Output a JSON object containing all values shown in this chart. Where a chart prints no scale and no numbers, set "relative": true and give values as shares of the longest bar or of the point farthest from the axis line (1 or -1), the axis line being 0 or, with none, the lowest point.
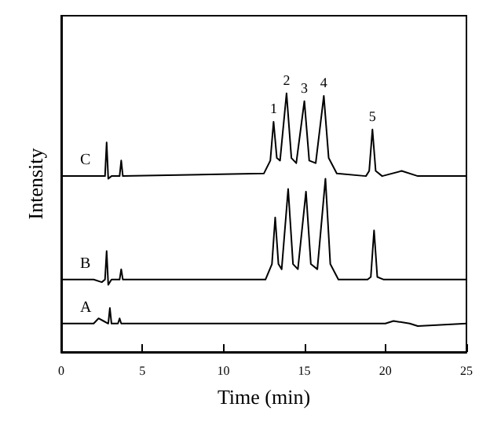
{
  "chart_data": {
    "type": "line",
    "relative": true,
    "xlabel": "Time (min)",
    "ylabel": "Intensity",
    "xlim": [
      0,
      25
    ],
    "xticks": [
      0,
      5,
      10,
      15,
      20,
      25
    ],
    "tick_labels": "x",
    "grid": false,
    "marker": "none",
    "line_style": "solid",
    "series": [
      {
        "name": "C",
        "color": "#000000",
        "x": [
          0,
          2,
          2.5,
          2.7,
          2.8,
          2.9,
          3.1,
          3.6,
          3.7,
          3.8,
          12.5,
          12.9,
          13.1,
          13.3,
          13.5,
          13.9,
          14.2,
          14.5,
          15.0,
          15.3,
          15.7,
          16.2,
          16.5,
          17,
          18.8,
          19.0,
          19.2,
          19.4,
          19.8,
          21,
          22,
          25
        ],
        "values": [
          0.68,
          0.68,
          0.68,
          0.68,
          0.81,
          0.67,
          0.68,
          0.68,
          0.74,
          0.68,
          0.69,
          0.74,
          0.89,
          0.75,
          0.74,
          1,
          0.75,
          0.73,
          0.97,
          0.74,
          0.73,
          0.99,
          0.75,
          0.69,
          0.68,
          0.7,
          0.86,
          0.7,
          0.68,
          0.7,
          0.68,
          0.68
        ]
      },
      {
        "name": "B",
        "color": "#000000",
        "x": [
          0,
          2,
          2.5,
          2.7,
          2.8,
          2.9,
          3.1,
          3.6,
          3.7,
          3.8,
          12.6,
          13.0,
          13.2,
          13.4,
          13.6,
          14.0,
          14.3,
          14.6,
          15.1,
          15.4,
          15.8,
          16.3,
          16.6,
          17.1,
          18.9,
          19.1,
          19.3,
          19.5,
          19.9,
          21,
          25
        ],
        "values": [
          0.28,
          0.28,
          0.27,
          0.28,
          0.39,
          0.26,
          0.28,
          0.28,
          0.32,
          0.28,
          0.28,
          0.34,
          0.52,
          0.34,
          0.32,
          0.63,
          0.34,
          0.32,
          0.62,
          0.34,
          0.32,
          0.67,
          0.34,
          0.28,
          0.28,
          0.29,
          0.47,
          0.29,
          0.28,
          0.28,
          0.28
        ]
      },
      {
        "name": "A",
        "color": "#000000",
        "x": [
          0,
          2,
          2.3,
          2.6,
          2.9,
          3.0,
          3.1,
          3.5,
          3.6,
          3.7,
          9,
          20,
          20.5,
          21.5,
          22,
          25
        ],
        "values": [
          0.11,
          0.11,
          0.13,
          0.12,
          0.11,
          0.17,
          0.11,
          0.11,
          0.13,
          0.11,
          0.11,
          0.11,
          0.12,
          0.11,
          0.1,
          0.11
        ]
      }
    ],
    "annotations": [
      {
        "text": "1",
        "x": 13.1,
        "y": 0.89
      },
      {
        "text": "2",
        "x": 13.9,
        "y": 1
      },
      {
        "text": "3",
        "x": 15.0,
        "y": 0.97
      },
      {
        "text": "4",
        "x": 16.2,
        "y": 0.99
      },
      {
        "text": "5",
        "x": 19.2,
        "y": 0.86
      }
    ]
  }
}
